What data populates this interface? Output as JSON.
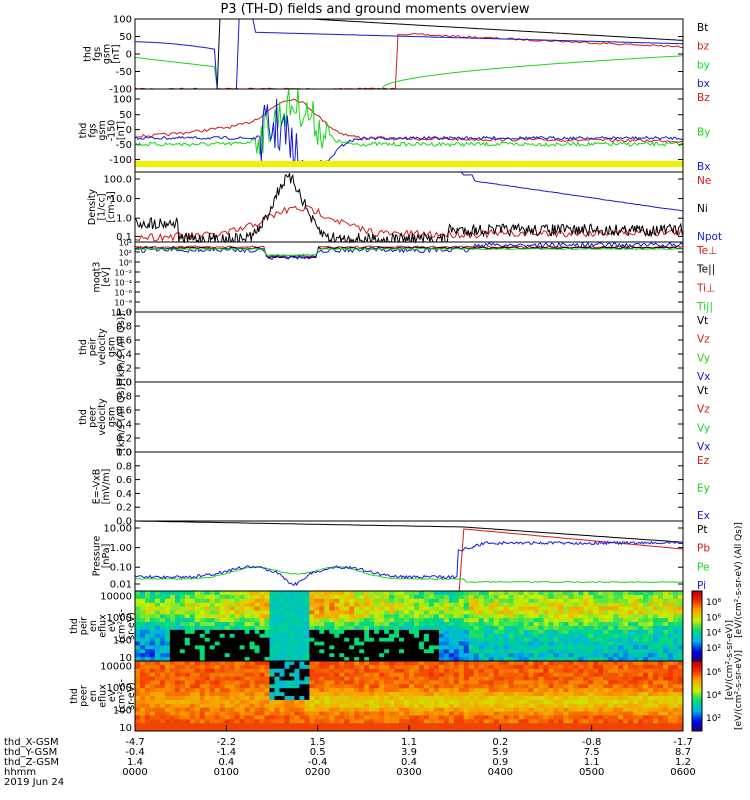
{
  "title": "P3 (TH-D) fields and ground moments overview",
  "colors": {
    "black": "#000000",
    "red": "#d81818",
    "green": "#18d818",
    "blue": "#1818d8",
    "yellow": "#f0f000"
  },
  "chart_data": [
    {
      "id": "p1",
      "type": "line",
      "ylabel_lines": [
        "thd",
        "fgs",
        "gsm",
        "[nT]"
      ],
      "ylim": [
        -100,
        100
      ],
      "yticks": [
        "100",
        "50",
        "0",
        "-50",
        "-100"
      ],
      "legend": [
        {
          "label": "Bt",
          "color": "black"
        },
        {
          "label": "bz",
          "color": "red"
        },
        {
          "label": "by",
          "color": "green"
        },
        {
          "label": "bx",
          "color": "blue"
        }
      ]
    },
    {
      "id": "p2",
      "type": "line",
      "ylabel_lines": [
        "thd",
        "fgs",
        "gsm",
        "-150",
        "[nT]"
      ],
      "ylim": [
        -150,
        130
      ],
      "yticks": [
        "100",
        "50",
        "0",
        "-50",
        "-100"
      ],
      "legend": [
        {
          "label": "Bz",
          "color": "red"
        },
        {
          "label": "By",
          "color": "green"
        },
        {
          "label": "Bx",
          "color": "blue"
        }
      ]
    },
    {
      "id": "p3",
      "type": "line",
      "log": true,
      "ylabel_lines": [
        "Density",
        "[1/cc]",
        "[cm-3]"
      ],
      "yticks": [
        "100.0",
        "10.0",
        "1.0",
        "0.1"
      ],
      "legend": [
        {
          "label": "Ne",
          "color": "red"
        },
        {
          "label": "Ni",
          "color": "black"
        },
        {
          "label": "Npot",
          "color": "blue"
        }
      ]
    },
    {
      "id": "p4",
      "type": "line",
      "log": true,
      "ylabel_lines": [
        "moqt3",
        "[eV]"
      ],
      "yticks": [
        "10⁴",
        "10²",
        "10⁰",
        "10⁻²",
        "10⁻⁴",
        "10⁻⁶",
        "10⁻⁸",
        "10⁻¹⁰"
      ],
      "legend": [
        {
          "label": "Te⊥",
          "color": "red"
        },
        {
          "label": "Te||",
          "color": "black"
        },
        {
          "label": "Ti⊥",
          "color": "red"
        },
        {
          "label": "Ti||",
          "color": "green"
        }
      ]
    },
    {
      "id": "p5",
      "type": "line",
      "ylabel_lines": [
        "thd",
        "peir",
        "velocity",
        "gsm",
        "[km/s (All Qs)]"
      ],
      "yticks": [
        "1.0",
        "0.8",
        "0.6",
        "0.4",
        "0.2",
        "0.0"
      ],
      "legend": [
        {
          "label": "Vt",
          "color": "black"
        },
        {
          "label": "Vz",
          "color": "red"
        },
        {
          "label": "Vy",
          "color": "green"
        },
        {
          "label": "Vx",
          "color": "blue"
        }
      ]
    },
    {
      "id": "p6",
      "type": "line",
      "ylabel_lines": [
        "thd",
        "peer",
        "velocity",
        "gsm",
        "[km/s (All Qs)]"
      ],
      "yticks": [
        "1.0",
        "0.8",
        "0.6",
        "0.4",
        "0.2",
        "0.0"
      ],
      "legend": [
        {
          "label": "Vt",
          "color": "black"
        },
        {
          "label": "Vz",
          "color": "red"
        },
        {
          "label": "Vy",
          "color": "green"
        },
        {
          "label": "Vx",
          "color": "blue"
        }
      ]
    },
    {
      "id": "p7",
      "type": "line",
      "ylabel_lines": [
        "E=-VxB",
        "[mV/m]"
      ],
      "yticks": [
        "1.0",
        "0.8",
        "0.6",
        "0.4",
        "0.2",
        "0.0"
      ],
      "legend": [
        {
          "label": "Ez",
          "color": "red"
        },
        {
          "label": "Ey",
          "color": "green"
        },
        {
          "label": "Ex",
          "color": "blue"
        }
      ]
    },
    {
      "id": "p8",
      "type": "line",
      "log": true,
      "ylabel_lines": [
        "Pressure",
        "[nPa]"
      ],
      "yticks": [
        "10.00",
        "1.00",
        "0.10",
        "0.01"
      ],
      "legend": [
        {
          "label": "Pt",
          "color": "black"
        },
        {
          "label": "Pb",
          "color": "red"
        },
        {
          "label": "Pe",
          "color": "green"
        },
        {
          "label": "Pi",
          "color": "blue"
        }
      ],
      "cbar_label": "[eV/(cm²-s-sr-eV) (All Qs)]"
    },
    {
      "id": "p9",
      "type": "heatmap",
      "ylabel_lines": [
        "thd",
        "peir",
        "en",
        "eflux",
        "eV",
        "(cm²-s-",
        "sr-eV)"
      ],
      "yticks": [
        "10000",
        "1000",
        "100",
        "10"
      ],
      "cbar_ticks": [
        "10⁸",
        "10⁶",
        "10⁴",
        "10²"
      ],
      "cbar_label": "[eV/(cm²-s-sr-eV)]"
    },
    {
      "id": "p10",
      "type": "heatmap",
      "ylabel_lines": [
        "thd",
        "peer",
        "en",
        "eflux",
        "eV",
        "(cm²-s-",
        "sr-eV)"
      ],
      "yticks": [
        "10000",
        "1000",
        "100",
        "10"
      ],
      "cbar_ticks": [
        "10⁶",
        "10⁴",
        "10²"
      ],
      "cbar_label": "[eV/(cm²-s-sr-eV)]"
    }
  ],
  "xaxis": {
    "rows": [
      {
        "label": "thd_X-GSM",
        "values": [
          "-4.7",
          "-2.2",
          "1.5",
          "1.1",
          "0.2",
          "-0.8",
          "-1.7"
        ]
      },
      {
        "label": "thd_Y-GSM",
        "values": [
          "-0.4",
          "-1.4",
          "0.5",
          "3.9",
          "5.9",
          "7.5",
          "8.7"
        ]
      },
      {
        "label": "thd_Z-GSM",
        "values": [
          "1.4",
          "0.4",
          "-0.4",
          "0.4",
          "0.9",
          "1.1",
          "1.2"
        ]
      },
      {
        "label": "hhmm",
        "values": [
          "0000",
          "0100",
          "0200",
          "0300",
          "0400",
          "0500",
          "0600"
        ]
      }
    ],
    "date": "2019 Jun 24"
  }
}
